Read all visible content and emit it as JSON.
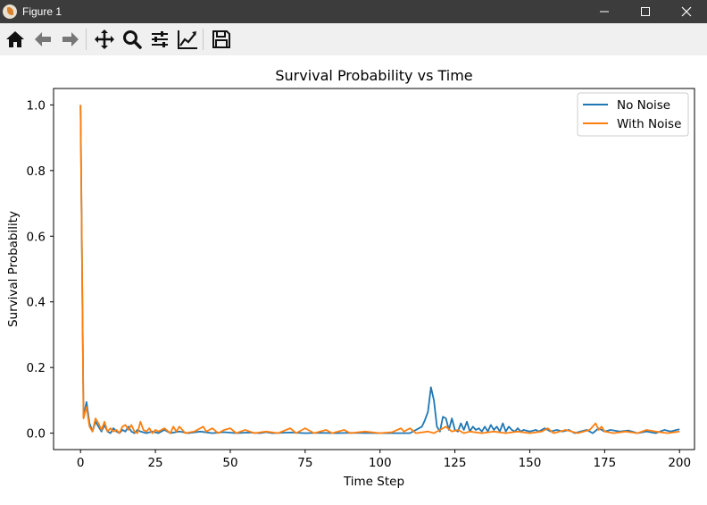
{
  "window": {
    "title": "Figure 1",
    "controls": [
      "minimize",
      "maximize",
      "close"
    ]
  },
  "toolbar": {
    "buttons": [
      {
        "name": "home",
        "icon": "home-icon"
      },
      {
        "name": "back",
        "icon": "arrow-left-icon"
      },
      {
        "name": "forward",
        "icon": "arrow-right-icon"
      },
      {
        "name": "pan",
        "icon": "move-icon"
      },
      {
        "name": "zoom",
        "icon": "magnifier-icon"
      },
      {
        "name": "configure-subplots",
        "icon": "sliders-icon"
      },
      {
        "name": "edit-axis",
        "icon": "line-chart-icon"
      },
      {
        "name": "save",
        "icon": "floppy-disk-icon"
      }
    ]
  },
  "chart_data": {
    "type": "line",
    "title": "Survival Probability vs Time",
    "xlabel": "Time Step",
    "ylabel": "Survival Probability",
    "xlim": [
      -9,
      205
    ],
    "ylim": [
      -0.05,
      1.05
    ],
    "xticks": [
      0,
      25,
      50,
      75,
      100,
      125,
      150,
      175,
      200
    ],
    "yticks": [
      0.0,
      0.2,
      0.4,
      0.6,
      0.8,
      1.0
    ],
    "grid": false,
    "legend": "top-right",
    "series": [
      {
        "name": "No Noise",
        "color": "#1f77b4",
        "points": [
          [
            0,
            1.0
          ],
          [
            1,
            0.05
          ],
          [
            2,
            0.095
          ],
          [
            3,
            0.03
          ],
          [
            4,
            0.005
          ],
          [
            5,
            0.035
          ],
          [
            6,
            0.02
          ],
          [
            7,
            0.005
          ],
          [
            8,
            0.025
          ],
          [
            9,
            0.005
          ],
          [
            10,
            0.0
          ],
          [
            11,
            0.015
          ],
          [
            12,
            0.005
          ],
          [
            13,
            0.0
          ],
          [
            14,
            0.01
          ],
          [
            15,
            0.005
          ],
          [
            16,
            0.02
          ],
          [
            17,
            0.005
          ],
          [
            18,
            0.0
          ],
          [
            19,
            0.01
          ],
          [
            20,
            0.005
          ],
          [
            22,
            0.0
          ],
          [
            24,
            0.005
          ],
          [
            26,
            0.0
          ],
          [
            28,
            0.01
          ],
          [
            30,
            0.0
          ],
          [
            33,
            0.005
          ],
          [
            36,
            0.0
          ],
          [
            40,
            0.005
          ],
          [
            44,
            0.0
          ],
          [
            48,
            0.003
          ],
          [
            52,
            0.0
          ],
          [
            56,
            0.002
          ],
          [
            60,
            0.0
          ],
          [
            62,
            0.003
          ],
          [
            64,
            0.0
          ],
          [
            70,
            0.002
          ],
          [
            75,
            0.0
          ],
          [
            80,
            0.001
          ],
          [
            85,
            0.0
          ],
          [
            90,
            0.001
          ],
          [
            100,
            0.0
          ],
          [
            110,
            0.0
          ],
          [
            114,
            0.02
          ],
          [
            115,
            0.04
          ],
          [
            116,
            0.065
          ],
          [
            117,
            0.14
          ],
          [
            118,
            0.1
          ],
          [
            119,
            0.02
          ],
          [
            120,
            0.005
          ],
          [
            121,
            0.05
          ],
          [
            122,
            0.045
          ],
          [
            123,
            0.01
          ],
          [
            124,
            0.045
          ],
          [
            125,
            0.01
          ],
          [
            126,
            0.005
          ],
          [
            127,
            0.03
          ],
          [
            128,
            0.01
          ],
          [
            129,
            0.035
          ],
          [
            130,
            0.005
          ],
          [
            131,
            0.02
          ],
          [
            132,
            0.01
          ],
          [
            133,
            0.015
          ],
          [
            134,
            0.005
          ],
          [
            135,
            0.02
          ],
          [
            136,
            0.005
          ],
          [
            137,
            0.025
          ],
          [
            138,
            0.01
          ],
          [
            139,
            0.02
          ],
          [
            140,
            0.005
          ],
          [
            141,
            0.03
          ],
          [
            142,
            0.005
          ],
          [
            143,
            0.02
          ],
          [
            144,
            0.01
          ],
          [
            145,
            0.005
          ],
          [
            146,
            0.015
          ],
          [
            147,
            0.005
          ],
          [
            148,
            0.01
          ],
          [
            150,
            0.005
          ],
          [
            152,
            0.01
          ],
          [
            153,
            0.005
          ],
          [
            155,
            0.015
          ],
          [
            157,
            0.005
          ],
          [
            159,
            0.01
          ],
          [
            161,
            0.005
          ],
          [
            163,
            0.01
          ],
          [
            165,
            0.0
          ],
          [
            167,
            0.005
          ],
          [
            169,
            0.01
          ],
          [
            171,
            0.0
          ],
          [
            173,
            0.015
          ],
          [
            175,
            0.005
          ],
          [
            177,
            0.01
          ],
          [
            180,
            0.005
          ],
          [
            183,
            0.008
          ],
          [
            186,
            0.0
          ],
          [
            189,
            0.005
          ],
          [
            192,
            0.0
          ],
          [
            195,
            0.01
          ],
          [
            197,
            0.005
          ],
          [
            199,
            0.01
          ],
          [
            200,
            0.012
          ]
        ]
      },
      {
        "name": "With Noise",
        "color": "#ff7f0e",
        "points": [
          [
            0,
            1.0
          ],
          [
            1,
            0.045
          ],
          [
            2,
            0.08
          ],
          [
            3,
            0.02
          ],
          [
            4,
            0.005
          ],
          [
            5,
            0.045
          ],
          [
            6,
            0.03
          ],
          [
            7,
            0.01
          ],
          [
            8,
            0.035
          ],
          [
            9,
            0.005
          ],
          [
            10,
            0.015
          ],
          [
            11,
            0.005
          ],
          [
            12,
            0.01
          ],
          [
            13,
            0.0
          ],
          [
            14,
            0.02
          ],
          [
            15,
            0.025
          ],
          [
            16,
            0.01
          ],
          [
            17,
            0.025
          ],
          [
            18,
            0.005
          ],
          [
            19,
            0.0
          ],
          [
            20,
            0.035
          ],
          [
            21,
            0.01
          ],
          [
            22,
            0.005
          ],
          [
            23,
            0.015
          ],
          [
            24,
            0.0
          ],
          [
            25,
            0.01
          ],
          [
            26,
            0.005
          ],
          [
            28,
            0.015
          ],
          [
            30,
            0.0
          ],
          [
            31,
            0.02
          ],
          [
            32,
            0.005
          ],
          [
            33,
            0.02
          ],
          [
            35,
            0.0
          ],
          [
            38,
            0.005
          ],
          [
            41,
            0.02
          ],
          [
            42,
            0.005
          ],
          [
            44,
            0.015
          ],
          [
            46,
            0.0
          ],
          [
            48,
            0.01
          ],
          [
            50,
            0.015
          ],
          [
            52,
            0.0
          ],
          [
            55,
            0.01
          ],
          [
            58,
            0.0
          ],
          [
            62,
            0.005
          ],
          [
            66,
            0.0
          ],
          [
            70,
            0.015
          ],
          [
            72,
            0.0
          ],
          [
            75,
            0.015
          ],
          [
            78,
            0.0
          ],
          [
            82,
            0.01
          ],
          [
            84,
            0.0
          ],
          [
            88,
            0.01
          ],
          [
            90,
            0.0
          ],
          [
            95,
            0.005
          ],
          [
            100,
            0.0
          ],
          [
            104,
            0.003
          ],
          [
            107,
            0.015
          ],
          [
            108,
            0.005
          ],
          [
            110,
            0.015
          ],
          [
            112,
            0.0
          ],
          [
            116,
            0.005
          ],
          [
            118,
            0.0
          ],
          [
            122,
            0.02
          ],
          [
            124,
            0.005
          ],
          [
            126,
            0.01
          ],
          [
            128,
            0.0
          ],
          [
            130,
            0.005
          ],
          [
            134,
            0.0
          ],
          [
            138,
            0.005
          ],
          [
            142,
            0.0
          ],
          [
            146,
            0.005
          ],
          [
            150,
            0.0
          ],
          [
            154,
            0.005
          ],
          [
            156,
            0.015
          ],
          [
            158,
            0.0
          ],
          [
            162,
            0.01
          ],
          [
            166,
            0.0
          ],
          [
            170,
            0.01
          ],
          [
            172,
            0.03
          ],
          [
            173,
            0.01
          ],
          [
            174,
            0.02
          ],
          [
            175,
            0.005
          ],
          [
            178,
            0.0
          ],
          [
            182,
            0.005
          ],
          [
            186,
            0.0
          ],
          [
            189,
            0.01
          ],
          [
            192,
            0.005
          ],
          [
            196,
            0.0
          ],
          [
            200,
            0.005
          ]
        ]
      }
    ]
  }
}
